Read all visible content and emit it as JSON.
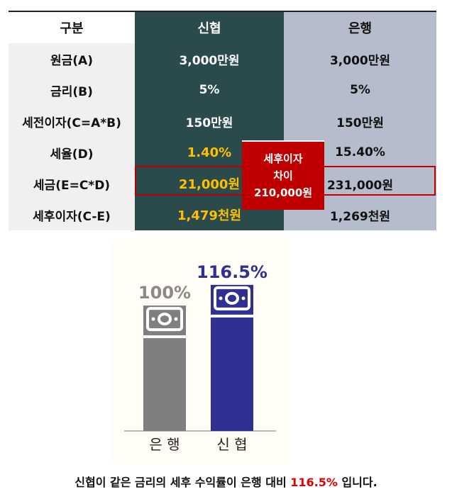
{
  "table": {
    "headers": [
      "구분",
      "신협",
      "은행"
    ],
    "rows": [
      {
        "label": "원금(A)",
        "shinhyup": "3,000만원",
        "bank": "3,000만원"
      },
      {
        "label": "금리(B)",
        "shinhyup": "5%",
        "bank": "5%"
      },
      {
        "label": "세전이자(C=A*B)",
        "shinhyup": "150만원",
        "bank": "150만원"
      },
      {
        "label": "세율(D)",
        "shinhyup": "1.40%",
        "bank": "15.40%"
      },
      {
        "label": "세금(E=C*D)",
        "shinhyup": "21,000원",
        "bank": "231,000원"
      },
      {
        "label": "세후이자(C-E)",
        "shinhyup": "1,479천원",
        "bank": "1,269천원"
      }
    ],
    "callout": {
      "line1": "세후이자",
      "line2": "차이",
      "line3": "210,000원"
    },
    "colors": {
      "shinhyup_col": "#2b4a4c",
      "bank_col": "#b5bccb",
      "highlight": "#c00000",
      "yellow": "#ffc000"
    }
  },
  "chart_data": {
    "type": "bar",
    "categories": [
      "은 행",
      "신 협"
    ],
    "values": [
      100,
      116.5
    ],
    "data_labels": [
      "100%",
      "116.5%"
    ],
    "ylim": [
      0,
      130
    ],
    "colors": [
      "#7f7f7f",
      "#2e3192"
    ],
    "bar_icons": [
      "money-bill-icon",
      "money-bill-icon"
    ]
  },
  "footnote": {
    "text": "신협이 같은 금리의 세후 수익률이 은행 대비 ",
    "highlight": "116.5%",
    "suffix": " 입니다."
  }
}
